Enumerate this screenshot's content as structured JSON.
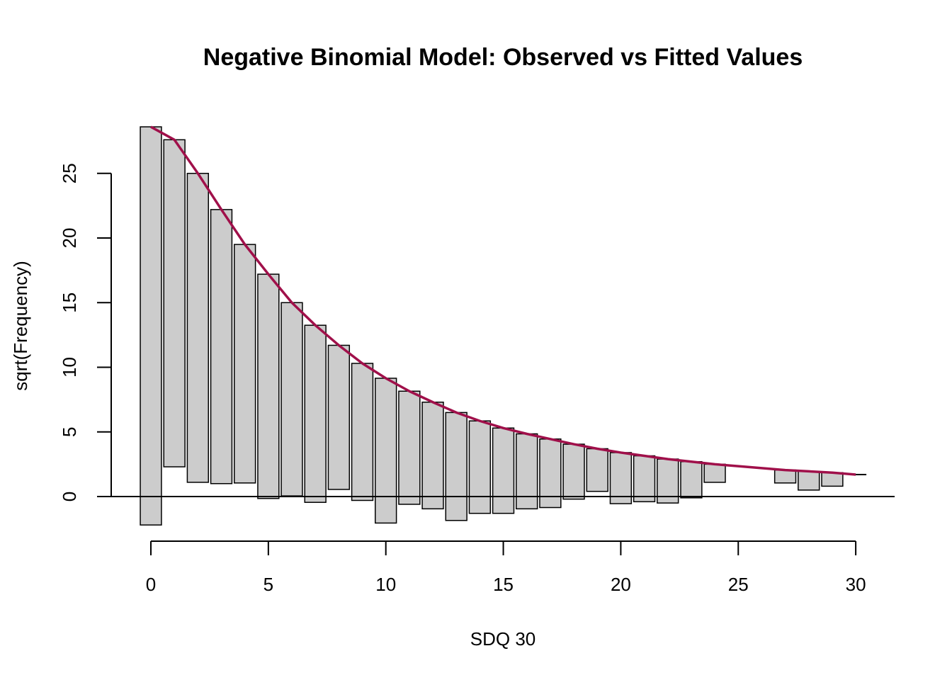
{
  "chart_data": {
    "type": "bar",
    "title": "Negative Binomial Model: Observed vs Fitted Values",
    "xlabel": "SDQ 30",
    "ylabel": "sqrt(Frequency)",
    "xlim": [
      -0.5,
      30.5
    ],
    "ylim": [
      -2.3,
      28.5
    ],
    "x_ticks": [
      0,
      5,
      10,
      15,
      20,
      25,
      30
    ],
    "y_ticks": [
      0,
      5,
      10,
      15,
      20,
      25
    ],
    "bar_fill": "#cccccc",
    "bar_stroke": "#000000",
    "fitted_color": "#a0104a",
    "bars": [
      {
        "x": 0,
        "top": 28.6,
        "bottom": -2.2
      },
      {
        "x": 1,
        "top": 27.6,
        "bottom": 2.3
      },
      {
        "x": 2,
        "top": 25.0,
        "bottom": 1.1
      },
      {
        "x": 3,
        "top": 22.2,
        "bottom": 1.0
      },
      {
        "x": 4,
        "top": 19.5,
        "bottom": 1.05
      },
      {
        "x": 5,
        "top": 17.2,
        "bottom": -0.15
      },
      {
        "x": 6,
        "top": 15.0,
        "bottom": 0.05
      },
      {
        "x": 7,
        "top": 13.25,
        "bottom": -0.45
      },
      {
        "x": 8,
        "top": 11.7,
        "bottom": 0.55
      },
      {
        "x": 9,
        "top": 10.3,
        "bottom": -0.3
      },
      {
        "x": 10,
        "top": 9.15,
        "bottom": -2.05
      },
      {
        "x": 11,
        "top": 8.15,
        "bottom": -0.6
      },
      {
        "x": 12,
        "top": 7.3,
        "bottom": -0.95
      },
      {
        "x": 13,
        "top": 6.5,
        "bottom": -1.85
      },
      {
        "x": 14,
        "top": 5.85,
        "bottom": -1.3
      },
      {
        "x": 15,
        "top": 5.3,
        "bottom": -1.3
      },
      {
        "x": 16,
        "top": 4.85,
        "bottom": -0.95
      },
      {
        "x": 17,
        "top": 4.45,
        "bottom": -0.85
      },
      {
        "x": 18,
        "top": 4.05,
        "bottom": -0.2
      },
      {
        "x": 19,
        "top": 3.7,
        "bottom": 0.4
      },
      {
        "x": 20,
        "top": 3.4,
        "bottom": -0.55
      },
      {
        "x": 21,
        "top": 3.15,
        "bottom": -0.4
      },
      {
        "x": 22,
        "top": 2.9,
        "bottom": -0.5
      },
      {
        "x": 23,
        "top": 2.7,
        "bottom": -0.1
      },
      {
        "x": 24,
        "top": 2.5,
        "bottom": 1.1
      },
      {
        "x": 27,
        "top": 2.05,
        "bottom": 1.05
      },
      {
        "x": 28,
        "top": 1.95,
        "bottom": 0.5
      },
      {
        "x": 29,
        "top": 1.85,
        "bottom": 0.8
      }
    ],
    "fitted": {
      "x": [
        0,
        1,
        2,
        3,
        4,
        5,
        6,
        7,
        8,
        9,
        10,
        11,
        12,
        13,
        14,
        15,
        16,
        17,
        18,
        19,
        20,
        21,
        22,
        23,
        24,
        25,
        26,
        27,
        28,
        29,
        30
      ],
      "y": [
        28.6,
        27.6,
        25.0,
        22.2,
        19.5,
        17.2,
        15.0,
        13.25,
        11.7,
        10.3,
        9.15,
        8.15,
        7.3,
        6.5,
        5.85,
        5.3,
        4.85,
        4.45,
        4.05,
        3.7,
        3.4,
        3.15,
        2.9,
        2.7,
        2.5,
        2.35,
        2.2,
        2.05,
        1.95,
        1.85,
        1.7
      ]
    }
  }
}
